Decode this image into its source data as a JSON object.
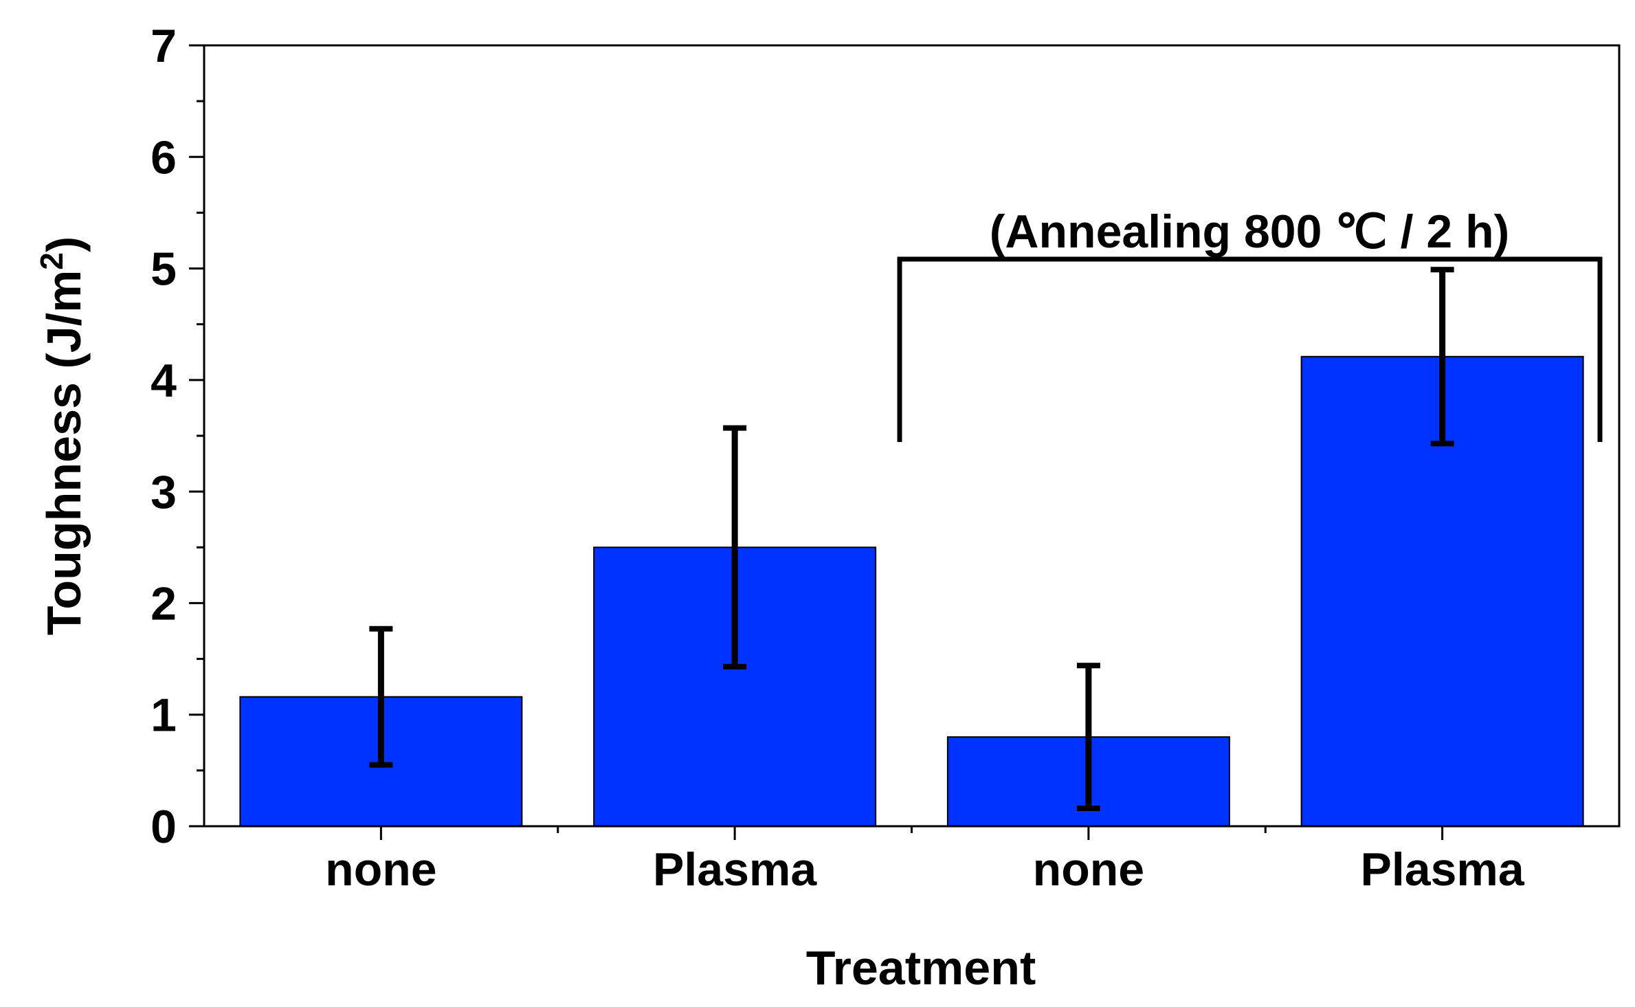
{
  "chart_data": {
    "type": "bar",
    "categories": [
      "none",
      "Plasma",
      "none",
      "Plasma"
    ],
    "values": [
      1.16,
      2.5,
      0.8,
      4.21
    ],
    "errors": [
      0.61,
      1.07,
      0.64,
      0.78
    ],
    "xlabel": "Treatment",
    "ylabel_main": "Toughness (J/m",
    "ylabel_sup": "2",
    "ylabel_close": ")",
    "ylim": [
      0,
      7
    ],
    "yticks": [
      "0",
      "1",
      "2",
      "3",
      "4",
      "5",
      "6",
      "7"
    ],
    "annotation": {
      "text": "(Annealing 800 ℃ / 2 h)",
      "spans_categories": [
        2,
        3
      ]
    },
    "bar_color": "#0033ff",
    "grid": false
  }
}
